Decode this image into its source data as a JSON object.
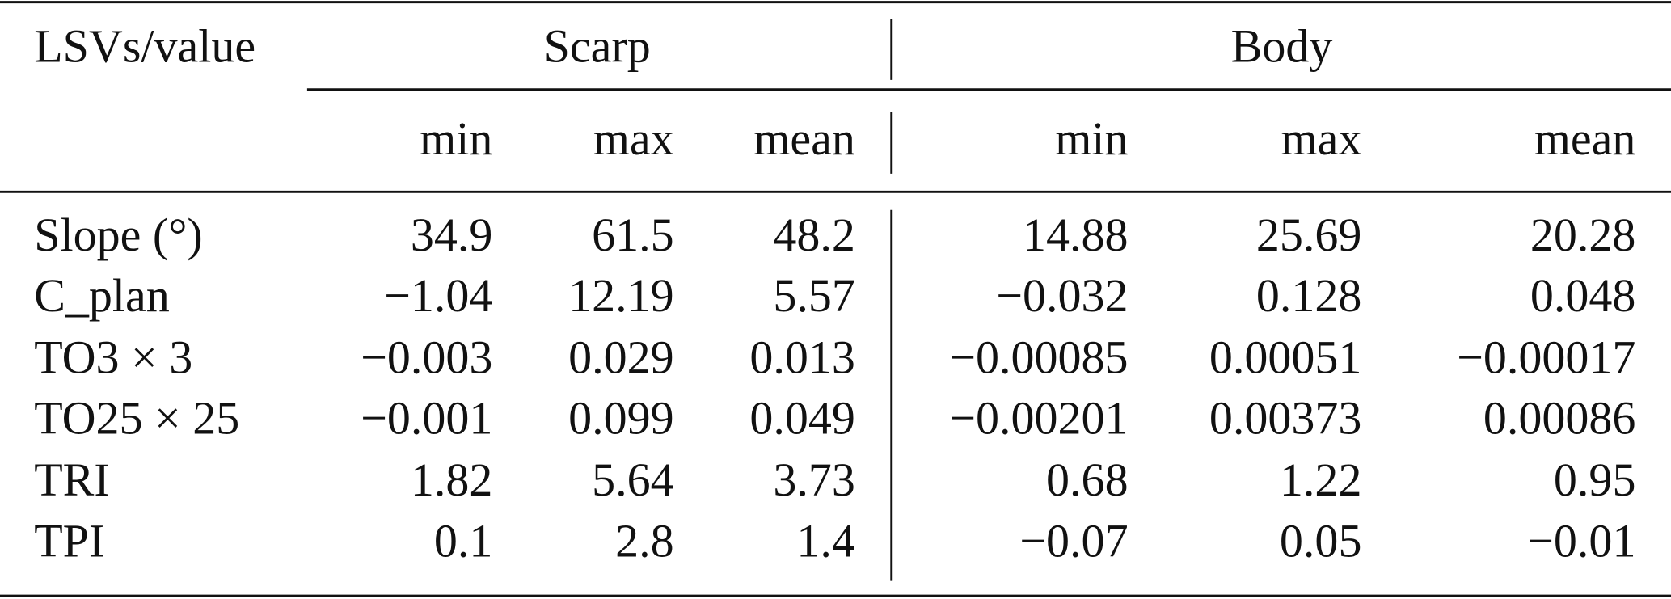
{
  "table": {
    "header": {
      "stub": "LSVs/value",
      "groups": [
        "Scarp",
        "Body"
      ],
      "columns": [
        "min",
        "max",
        "mean",
        "min",
        "max",
        "mean"
      ]
    },
    "rows": [
      {
        "label": "Slope (°)",
        "cells": [
          "34.9",
          "61.5",
          "48.2",
          "14.88",
          "25.69",
          "20.28"
        ]
      },
      {
        "label": "C_plan",
        "cells": [
          "−1.04",
          "12.19",
          "5.57",
          "−0.032",
          "0.128",
          "0.048"
        ]
      },
      {
        "label": "TO3 × 3",
        "cells": [
          "−0.003",
          "0.029",
          "0.013",
          "−0.00085",
          "0.00051",
          "−0.00017"
        ]
      },
      {
        "label": "TO25 × 25",
        "cells": [
          "−0.001",
          "0.099",
          "0.049",
          "−0.00201",
          "0.00373",
          "0.00086"
        ]
      },
      {
        "label": "TRI",
        "cells": [
          "1.82",
          "5.64",
          "3.73",
          "0.68",
          "1.22",
          "0.95"
        ]
      },
      {
        "label": "TPI",
        "cells": [
          "0.1",
          "2.8",
          "1.4",
          "−0.07",
          "0.05",
          "−0.01"
        ]
      }
    ]
  }
}
